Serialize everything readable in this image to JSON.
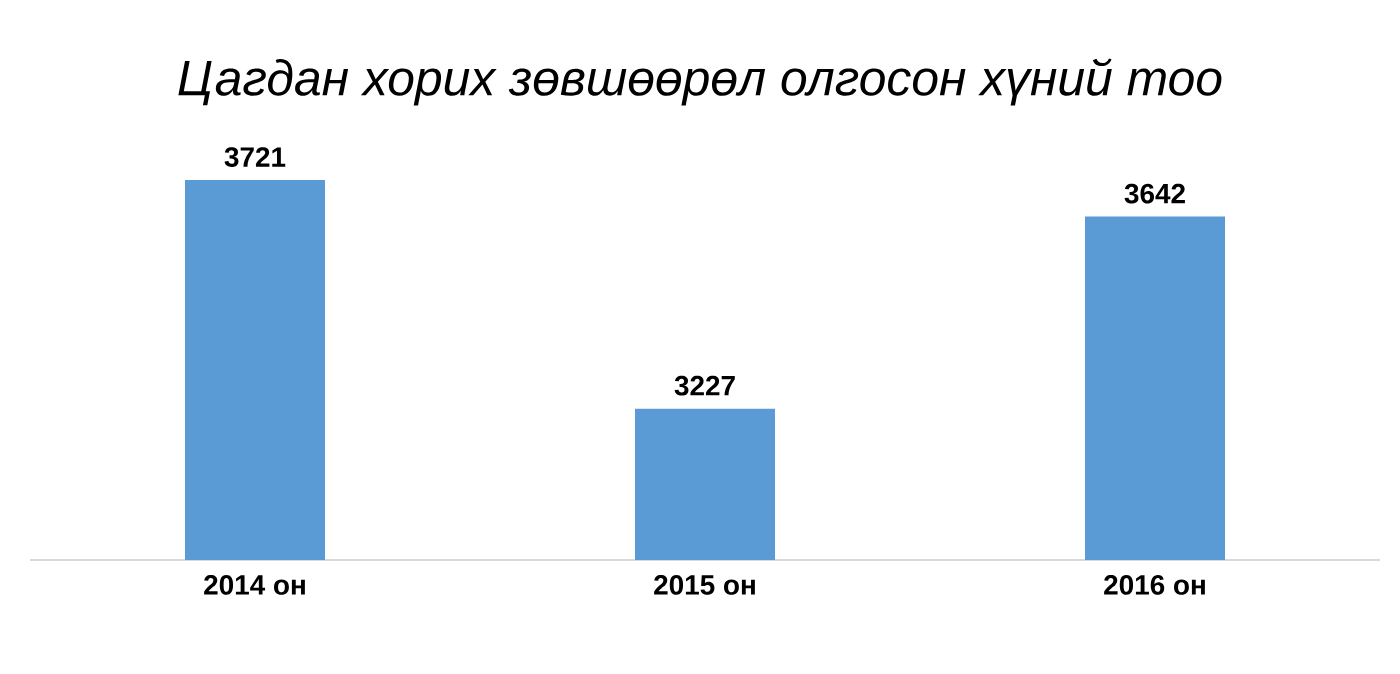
{
  "chart_data": {
    "type": "bar",
    "title": "*Цагдан хорих зөвшөөрөл олгосон хүний тоо*",
    "categories": [
      "2014 он",
      "2015 он",
      "2016 он"
    ],
    "values": [
      3721,
      3227,
      3642
    ],
    "color": "#5b9bd5",
    "data_labels": true,
    "ylim": [
      2900,
      3721
    ]
  }
}
